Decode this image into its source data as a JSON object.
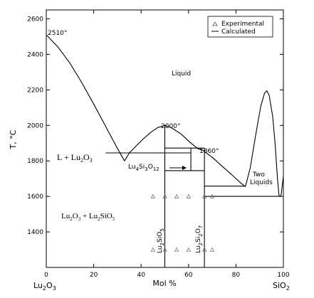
{
  "chart_data": {
    "type": "line",
    "title": "",
    "ylabel": "T, °C",
    "xlabel": "Mol %",
    "xlim": [
      0,
      100
    ],
    "ylim": [
      1200,
      2650
    ],
    "x_ticks": [
      0,
      20,
      40,
      60,
      80,
      100
    ],
    "y_ticks": [
      1400,
      1600,
      1800,
      2000,
      2200,
      2400,
      2600
    ],
    "x_end_labels": {
      "left_main": "Lu",
      "left_sub": "2",
      "left_o": "O",
      "left_o_sub": "3",
      "right_main": "SiO",
      "right_sub": "2"
    },
    "legend": {
      "position": "top-right",
      "experimental": "Experimental",
      "calculated": "Calculated"
    },
    "calculated_lines": [
      {
        "points": [
          [
            0,
            2510
          ],
          [
            5,
            2440
          ],
          [
            10,
            2350
          ],
          [
            15,
            2240
          ],
          [
            20,
            2120
          ],
          [
            25,
            1995
          ],
          [
            30,
            1870
          ],
          [
            33,
            1800
          ],
          [
            35,
            1845
          ]
        ]
      },
      {
        "points": [
          [
            35,
            1845
          ],
          [
            38,
            1885
          ],
          [
            41,
            1925
          ],
          [
            44,
            1960
          ],
          [
            47,
            1988
          ],
          [
            50,
            2000
          ],
          [
            53,
            1985
          ],
          [
            57,
            1950
          ],
          [
            61,
            1900
          ],
          [
            64,
            1868
          ],
          [
            66,
            1860
          ]
        ]
      },
      {
        "points": [
          [
            66,
            1860
          ],
          [
            70,
            1820
          ],
          [
            74,
            1772
          ],
          [
            78,
            1725
          ],
          [
            82,
            1675
          ],
          [
            84,
            1655
          ]
        ]
      },
      {
        "points": [
          [
            84,
            1655
          ],
          [
            86,
            1760
          ],
          [
            87.5,
            1880
          ],
          [
            89,
            2000
          ],
          [
            90.5,
            2110
          ],
          [
            92,
            2180
          ],
          [
            93,
            2195
          ],
          [
            94,
            2170
          ],
          [
            95.5,
            2050
          ],
          [
            96.5,
            1900
          ],
          [
            97.5,
            1700
          ],
          [
            98.2,
            1600
          ],
          [
            99,
            1605
          ],
          [
            100,
            1713
          ]
        ]
      },
      {
        "points": [
          [
            25,
            1845
          ],
          [
            61,
            1845
          ]
        ]
      },
      {
        "points": [
          [
            50,
            1200
          ],
          [
            50,
            2000
          ]
        ]
      },
      {
        "points": [
          [
            50,
            1872
          ],
          [
            61,
            1872
          ],
          [
            61,
            1745
          ],
          [
            50,
            1745
          ]
        ]
      },
      {
        "points": [
          [
            61,
            1872
          ],
          [
            66.7,
            1872
          ]
        ]
      },
      {
        "points": [
          [
            61,
            1745
          ],
          [
            66.7,
            1745
          ]
        ]
      },
      {
        "points": [
          [
            66.7,
            1200
          ],
          [
            66.7,
            1872
          ]
        ]
      },
      {
        "points": [
          [
            66.7,
            1658
          ],
          [
            84,
            1658
          ]
        ]
      },
      {
        "points": [
          [
            66.7,
            1600
          ],
          [
            98.2,
            1600
          ]
        ]
      }
    ],
    "experimental_points": [
      [
        45,
        1600
      ],
      [
        50,
        1600
      ],
      [
        55,
        1600
      ],
      [
        60,
        1600
      ],
      [
        66.7,
        1600
      ],
      [
        70,
        1600
      ],
      [
        45,
        1300
      ],
      [
        50,
        1300
      ],
      [
        55,
        1300
      ],
      [
        60,
        1300
      ],
      [
        66.7,
        1300
      ],
      [
        70,
        1300
      ]
    ],
    "annotations": {
      "t2510": "2510°",
      "t2000": "2000°",
      "t1860": "1860°",
      "liquid": "Liquid",
      "two_liquids_1": "Two",
      "two_liquids_2": "Liquids",
      "l_lu2o3": "L + Lu",
      "l_lu2o3_sub": "2",
      "l_lu2o3_o": "O",
      "l_lu2o3_sub2": "3",
      "lu2o3_lu2sio5": "Lu",
      "phase_lu4si3o12": "Lu",
      "phase_lu2sio5": "Lu",
      "phase_lu2si2o7": "Lu"
    }
  }
}
